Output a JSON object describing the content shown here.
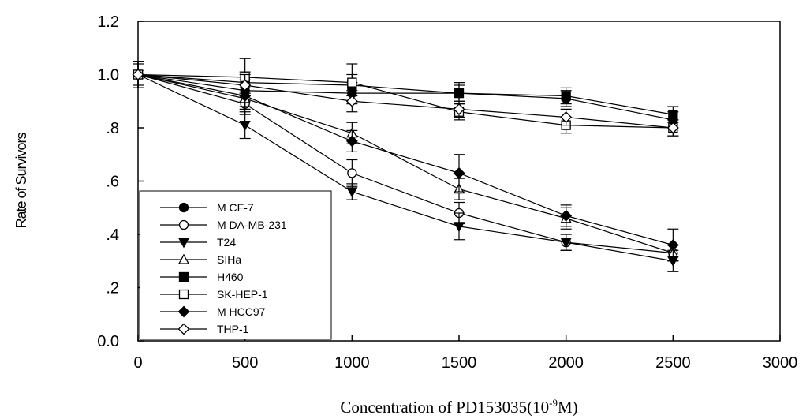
{
  "chart_data": {
    "type": "line",
    "title": "",
    "xlabel_main": "Concentration of PD153035(10",
    "xlabel_sup": "-9",
    "xlabel_end": "M)",
    "ylabel": "Rate of Survivors",
    "xlim": [
      0,
      3000
    ],
    "ylim": [
      0,
      1.2
    ],
    "x_ticks": [
      0,
      500,
      1000,
      1500,
      2000,
      2500,
      3000
    ],
    "x_tick_labels": [
      "0",
      "500",
      "1000",
      "1500",
      "2000",
      "2500",
      "3000"
    ],
    "y_ticks": [
      0,
      0.2,
      0.4,
      0.6,
      0.8,
      1.0,
      1.2
    ],
    "y_tick_labels": [
      "0.0",
      ".2",
      ".4",
      ".6",
      ".8",
      "1.0",
      "1.2"
    ],
    "grid": false,
    "legend_position": "bottom-left",
    "x": [
      0,
      500,
      1000,
      1500,
      2000,
      2500
    ],
    "series": [
      {
        "name": "M CF-7",
        "marker": "circle-filled",
        "values": [
          1.0,
          0.94,
          0.93,
          0.93,
          0.91,
          0.83
        ],
        "errors": [
          0.05,
          0.04,
          0.04,
          0.03,
          0.03,
          0.03
        ]
      },
      {
        "name": "M DA-MB-231",
        "marker": "circle-open",
        "values": [
          1.0,
          0.89,
          0.63,
          0.48,
          0.37,
          0.33
        ],
        "errors": [
          0.05,
          0.04,
          0.05,
          0.04,
          0.03,
          0.03
        ]
      },
      {
        "name": "T24",
        "marker": "triangle-down-filled",
        "values": [
          1.0,
          0.81,
          0.56,
          0.43,
          0.37,
          0.3
        ],
        "errors": [
          0.05,
          0.05,
          0.03,
          0.05,
          0.03,
          0.04
        ]
      },
      {
        "name": "SIHa",
        "marker": "triangle-up-open",
        "values": [
          1.0,
          0.91,
          0.78,
          0.57,
          0.46,
          0.33
        ],
        "errors": [
          0.04,
          0.04,
          0.04,
          0.04,
          0.04,
          0.03
        ]
      },
      {
        "name": "H460",
        "marker": "square-filled",
        "values": [
          1.0,
          0.97,
          0.96,
          0.93,
          0.92,
          0.85
        ],
        "errors": [
          0.05,
          0.04,
          0.04,
          0.04,
          0.03,
          0.03
        ]
      },
      {
        "name": "SK-HEP-1",
        "marker": "square-open",
        "values": [
          1.0,
          0.99,
          0.97,
          0.86,
          0.81,
          0.8
        ],
        "errors": [
          0.05,
          0.07,
          0.07,
          0.03,
          0.03,
          0.03
        ]
      },
      {
        "name": "M HCC97",
        "marker": "diamond-filled",
        "values": [
          1.0,
          0.92,
          0.75,
          0.63,
          0.47,
          0.36
        ],
        "errors": [
          0.05,
          0.04,
          0.04,
          0.07,
          0.04,
          0.06
        ]
      },
      {
        "name": "THP-1",
        "marker": "diamond-open",
        "values": [
          1.0,
          0.96,
          0.9,
          0.87,
          0.84,
          0.8
        ],
        "errors": [
          0.05,
          0.04,
          0.04,
          0.03,
          0.03,
          0.03
        ]
      }
    ]
  }
}
